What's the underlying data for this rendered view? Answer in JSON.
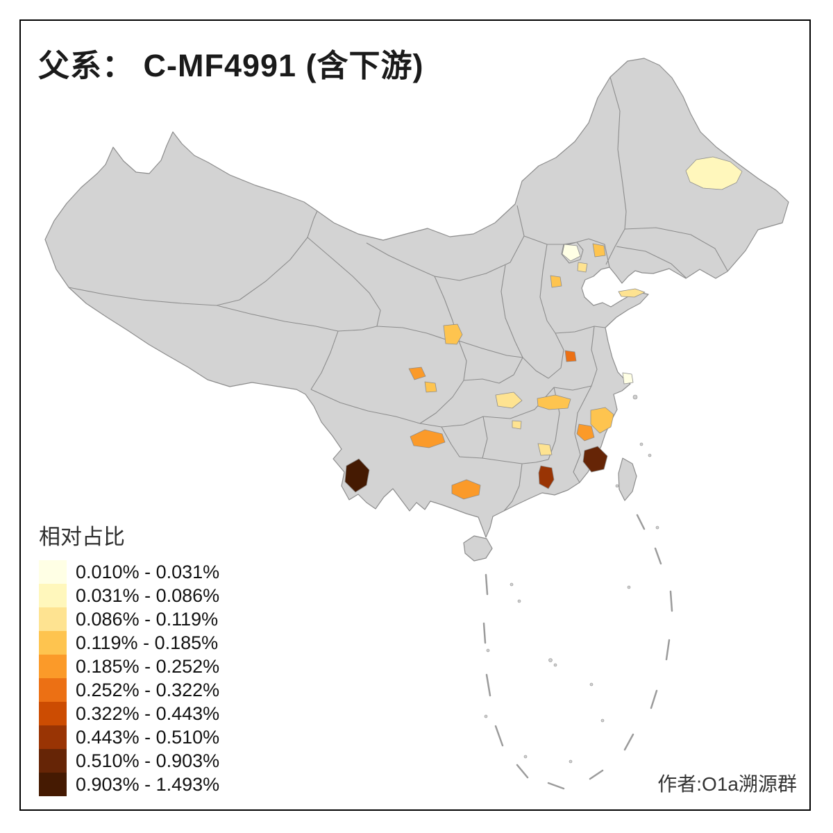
{
  "title": "父系： C-MF4991 (含下游)",
  "attribution": "作者:O1a溯源群",
  "legend": {
    "title": "相对占比",
    "classes": [
      {
        "label": "0.010% - 0.031%",
        "color": "#FFFFE5"
      },
      {
        "label": "0.031% - 0.086%",
        "color": "#FFF7BC"
      },
      {
        "label": "0.086% - 0.119%",
        "color": "#FEE391"
      },
      {
        "label": "0.119% - 0.185%",
        "color": "#FEC44F"
      },
      {
        "label": "0.185% - 0.252%",
        "color": "#FB9A29"
      },
      {
        "label": "0.252% - 0.322%",
        "color": "#EC7014"
      },
      {
        "label": "0.322% - 0.443%",
        "color": "#CC4C02"
      },
      {
        "label": "0.443% - 0.510%",
        "color": "#993404"
      },
      {
        "label": "0.510% - 0.903%",
        "color": "#662506"
      },
      {
        "label": "0.903% - 1.493%",
        "color": "#451A02"
      }
    ]
  },
  "map": {
    "base_fill": "#D3D3D3",
    "border_stroke": "#8C8C8C",
    "regions": [
      {
        "color": "#FFF7BC"
      },
      {
        "color": "#FFFFE5"
      },
      {
        "color": "#FEE391"
      },
      {
        "color": "#FEC44F"
      },
      {
        "color": "#FEC44F"
      },
      {
        "color": "#FEE391"
      },
      {
        "color": "#FEC44F"
      },
      {
        "color": "#EC7014"
      },
      {
        "color": "#FB9A29"
      },
      {
        "color": "#FEC44F"
      },
      {
        "color": "#FFFFE5"
      },
      {
        "color": "#FEE391"
      },
      {
        "color": "#FEC44F"
      },
      {
        "color": "#FEE391"
      },
      {
        "color": "#FEC44F"
      },
      {
        "color": "#FB9A29"
      },
      {
        "color": "#FB9A29"
      },
      {
        "color": "#662506"
      },
      {
        "color": "#FEE391"
      },
      {
        "color": "#993404"
      },
      {
        "color": "#451A02"
      },
      {
        "color": "#FB9A29"
      }
    ]
  }
}
